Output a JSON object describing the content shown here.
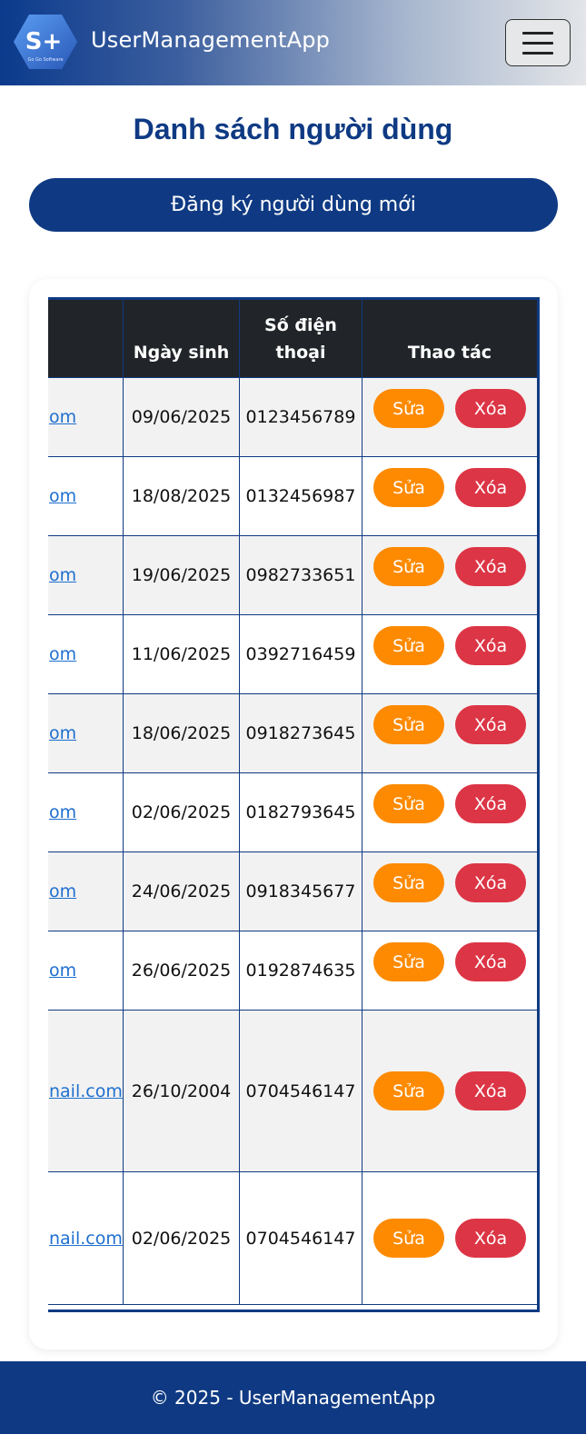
{
  "navbar": {
    "logo_text": "S+",
    "logo_subtext": "Go Go Software",
    "brand": "UserManagementApp",
    "menu_icon": "hamburger-icon"
  },
  "page": {
    "title": "Danh sách người dùng",
    "register_button": "Đăng ký người dùng mới"
  },
  "table": {
    "headers": {
      "dob": "Ngày sinh",
      "phone_line1": "Số điện",
      "phone_line2": "thoại",
      "actions": "Thao tác"
    },
    "rows": [
      {
        "email": "om",
        "dob": "09/06/2025",
        "phone": "0123456789",
        "edit": "Sửa",
        "delete": "Xóa"
      },
      {
        "email": "om",
        "dob": "18/08/2025",
        "phone": "0132456987",
        "edit": "Sửa",
        "delete": "Xóa"
      },
      {
        "email": "om",
        "dob": "19/06/2025",
        "phone": "0982733651",
        "edit": "Sửa",
        "delete": "Xóa"
      },
      {
        "email": "om",
        "dob": "11/06/2025",
        "phone": "0392716459",
        "edit": "Sửa",
        "delete": "Xóa"
      },
      {
        "email": "om",
        "dob": "18/06/2025",
        "phone": "0918273645",
        "edit": "Sửa",
        "delete": "Xóa"
      },
      {
        "email": "om",
        "dob": "02/06/2025",
        "phone": "0182793645",
        "edit": "Sửa",
        "delete": "Xóa"
      },
      {
        "email": "om",
        "dob": "24/06/2025",
        "phone": "0918345677",
        "edit": "Sửa",
        "delete": "Xóa"
      },
      {
        "email": "om",
        "dob": "26/06/2025",
        "phone": "0192874635",
        "edit": "Sửa",
        "delete": "Xóa"
      },
      {
        "email": "nail.com",
        "dob": "26/10/2004",
        "phone": "0704546147",
        "edit": "Sửa",
        "delete": "Xóa"
      },
      {
        "email": "nail.com",
        "dob": "02/06/2025",
        "phone": "0704546147",
        "edit": "Sửa",
        "delete": "Xóa"
      }
    ]
  },
  "footer": {
    "text": "© 2025 - UserManagementApp"
  },
  "colors": {
    "primary": "#0f3a83",
    "edit": "#fd8a00",
    "delete": "#dc3545",
    "link": "#1e6fcf",
    "header_bg": "#212529"
  }
}
